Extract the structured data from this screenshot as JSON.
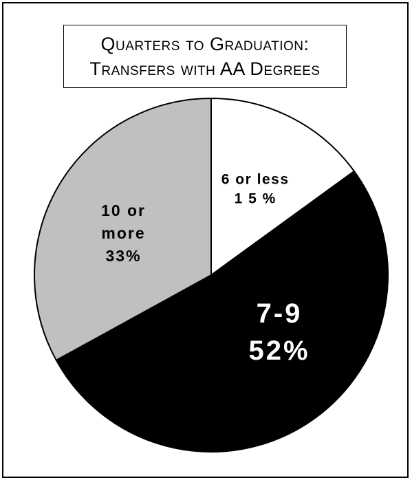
{
  "title_lines": [
    "Quarters to Graduation:",
    "Transfers with AA Degrees"
  ],
  "chart_data": {
    "type": "pie",
    "title": "Quarters to Graduation: Transfers with AA Degrees",
    "slices": [
      {
        "label": "6 or less",
        "value_label": "1 5 %",
        "value": 15,
        "color": "#ffffff",
        "text_color": "#000000"
      },
      {
        "label": "7-9",
        "value_label": "52%",
        "value": 52,
        "color": "#000000",
        "text_color": "#ffffff"
      },
      {
        "label": "10 or more",
        "label_lines": [
          "10 or",
          "more"
        ],
        "value_label": "33%",
        "value": 33,
        "color": "#c0c0c0",
        "text_color": "#000000"
      }
    ]
  }
}
